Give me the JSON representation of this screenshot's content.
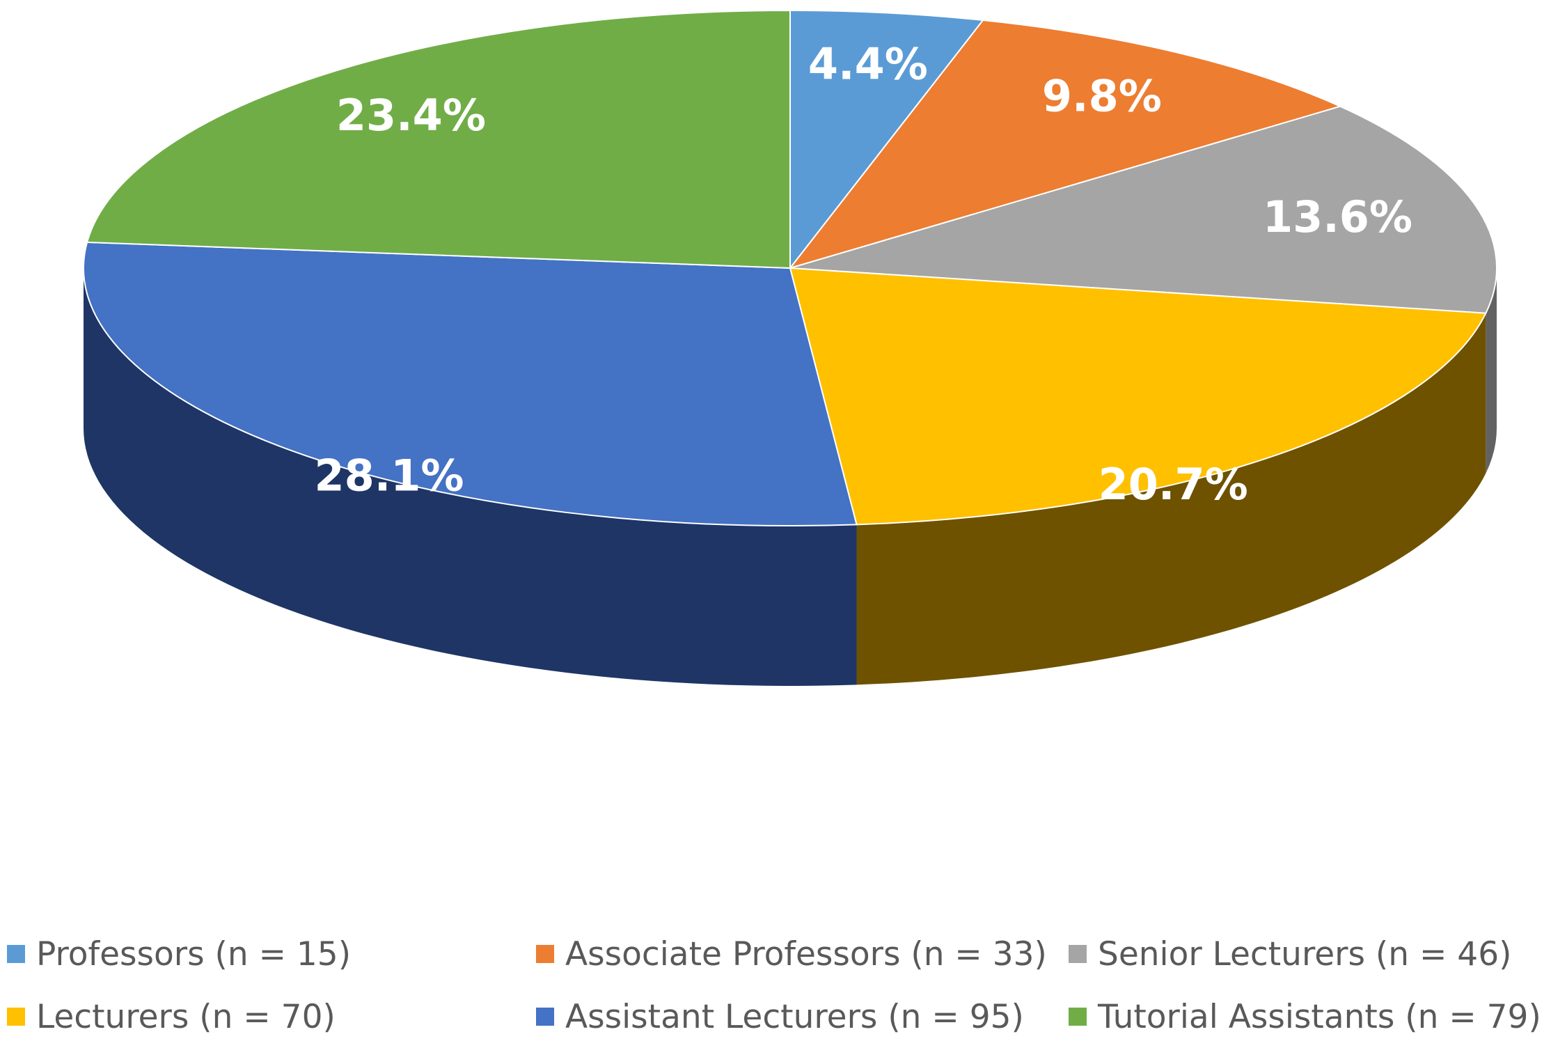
{
  "chart_data": {
    "type": "pie",
    "style": "3d",
    "start_angle": "12 o'clock",
    "direction": "clockwise",
    "slices": [
      {
        "name": "Professors (n = 15)",
        "value": 4.4,
        "label": "4.4%",
        "color": "#5B9BD5",
        "side_color": "#2E5C85"
      },
      {
        "name": "Associate Professors (n = 33)",
        "value": 9.8,
        "label": "9.8%",
        "color": "#ED7D31",
        "side_color": "#9A4E1C"
      },
      {
        "name": "Senior Lecturers (n = 46)",
        "value": 13.6,
        "label": "13.6%",
        "color": "#A5A5A5",
        "side_color": "#626262"
      },
      {
        "name": "Lecturers (n = 70)",
        "value": 20.7,
        "label": "20.7%",
        "color": "#FFC000",
        "side_color": "#6E5200"
      },
      {
        "name": "Assistant Lecturers (n = 95)",
        "value": 28.1,
        "label": "28.1%",
        "color": "#4472C4",
        "side_color": "#1E3566"
      },
      {
        "name": "Tutorial Assistants (n = 79)",
        "value": 23.4,
        "label": "23.4%",
        "color": "#70AD47",
        "side_color": "#3D6626"
      }
    ],
    "legend": {
      "placement": "bottom",
      "items": [
        "Professors (n = 15)",
        "Associate Professors (n = 33)",
        "Senior Lecturers (n = 46)",
        "Lecturers (n = 70)",
        "Assistant Lecturers (n = 95)",
        "Tutorial Assistants (n = 79)"
      ]
    }
  }
}
